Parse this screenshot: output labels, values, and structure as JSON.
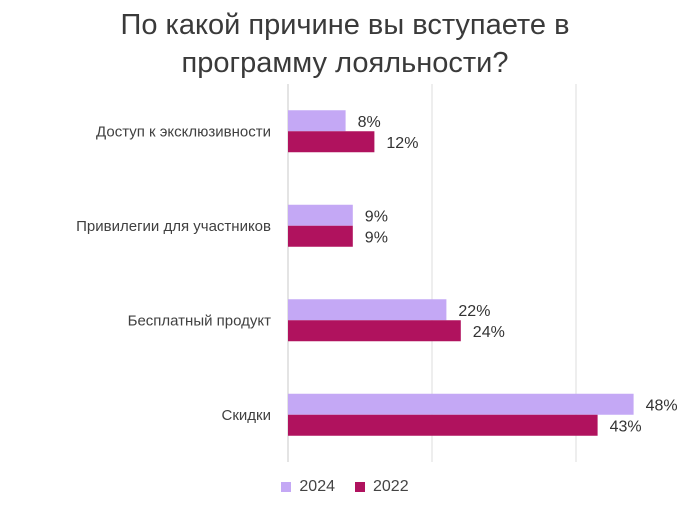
{
  "chart_data": {
    "type": "bar",
    "orientation": "horizontal",
    "title": [
      "По какой причине вы вступаете в",
      "программу лояльности?"
    ],
    "categories": [
      "Доступ к эксклюзивности",
      "Привилегии для участников",
      "Бесплатный продукт",
      "Скидки"
    ],
    "series": [
      {
        "name": "2024",
        "color": "#c4a8f5",
        "values": [
          8,
          9,
          22,
          48
        ],
        "labels": [
          "8%",
          "9%",
          "22%",
          "48%"
        ]
      },
      {
        "name": "2022",
        "color": "#b0125e",
        "values": [
          12,
          9,
          24,
          43
        ],
        "labels": [
          "12%",
          "9%",
          "24%",
          "43%"
        ]
      }
    ],
    "xlim": [
      0,
      60
    ],
    "gridlines": true,
    "legend_position": "bottom"
  }
}
